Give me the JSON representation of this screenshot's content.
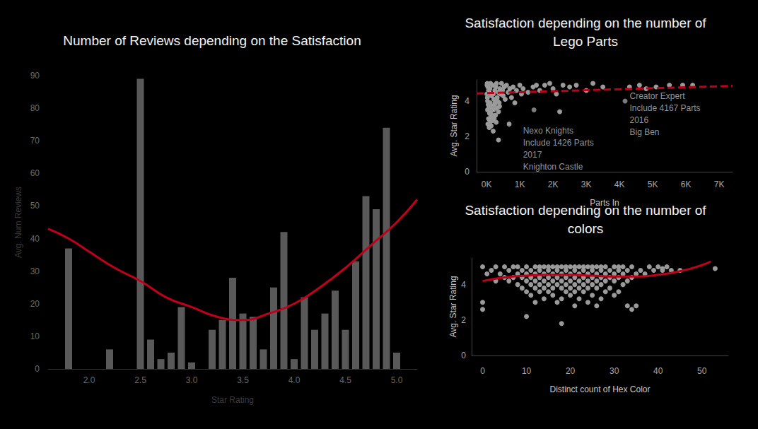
{
  "chart_data": [
    {
      "type": "bar",
      "title": "Number of Reviews depending on the Satisfaction",
      "x_label": "Star Rating",
      "y_label": "Avg. Num Reviews",
      "xlim": [
        1.6,
        5.2
      ],
      "xticks": [
        {
          "value": 2,
          "label": "2.0"
        },
        2.5,
        {
          "value": 3,
          "label": "3.0"
        },
        3.5,
        {
          "value": 4,
          "label": "4.0"
        },
        4.5,
        {
          "value": 5,
          "label": "5.0"
        }
      ],
      "ylim": [
        0,
        90
      ],
      "yticks": [
        0,
        10,
        20,
        30,
        40,
        50,
        60,
        70,
        80,
        90
      ],
      "grid": false,
      "series": [
        {
          "type": "bar",
          "color": "#595959",
          "x": [
            1.8,
            2.2,
            2.5,
            2.6,
            2.7,
            2.8,
            2.9,
            3.0,
            3.2,
            3.3,
            3.4,
            3.5,
            3.6,
            3.7,
            3.8,
            3.9,
            4.0,
            4.1,
            4.2,
            4.3,
            4.4,
            4.5,
            4.6,
            4.7,
            4.8,
            4.9,
            5.0
          ],
          "values": [
            37,
            6,
            89,
            9,
            3,
            5,
            19,
            2,
            12,
            15,
            28,
            17,
            16,
            6,
            25,
            42,
            3,
            22,
            12,
            17,
            24,
            12,
            33,
            53,
            49,
            74,
            5
          ]
        },
        {
          "type": "line",
          "color": "#c0001a",
          "line_style": "solid",
          "x": [
            1.6,
            1.8,
            2.0,
            2.25,
            2.5,
            2.75,
            3.0,
            3.25,
            3.5,
            3.75,
            4.0,
            4.25,
            4.5,
            4.75,
            5.0,
            5.2
          ],
          "values": [
            43,
            40,
            36,
            31,
            27,
            22,
            19,
            16,
            15,
            17,
            20,
            25,
            31,
            38,
            45,
            52
          ]
        }
      ]
    },
    {
      "type": "scatter",
      "title": "Satisfaction depending on the number of\nLego Parts",
      "x_label": "Parts In",
      "y_label": "Avg. Star Rating",
      "xlim": [
        -300,
        7400
      ],
      "xticks": [
        {
          "value": 0,
          "label": "0K"
        },
        {
          "value": 1000,
          "label": "1K"
        },
        {
          "value": 2000,
          "label": "2K"
        },
        {
          "value": 3000,
          "label": "3K"
        },
        {
          "value": 4000,
          "label": "4K"
        },
        {
          "value": 5000,
          "label": "5K"
        },
        {
          "value": 6000,
          "label": "6K"
        },
        {
          "value": 7000,
          "label": "7K"
        }
      ],
      "ylim": [
        0,
        5.2
      ],
      "yticks": [
        0,
        2,
        4
      ],
      "grid": false,
      "series": [
        {
          "type": "scatter",
          "color": "#9a9a9a",
          "marker": "circle",
          "x": [
            20,
            40,
            60,
            80,
            100,
            120,
            150,
            180,
            200,
            220,
            250,
            280,
            300,
            320,
            350,
            380,
            400,
            420,
            450,
            480,
            500,
            530,
            560,
            600,
            650,
            700,
            30,
            50,
            70,
            90,
            110,
            130,
            160,
            190,
            210,
            240,
            270,
            300,
            330,
            360,
            390,
            40,
            60,
            80,
            100,
            120,
            140,
            170,
            200,
            230,
            260,
            290,
            30,
            10,
            15,
            25,
            360,
            680,
            750,
            800,
            850,
            900,
            1000,
            1050,
            1100,
            1250,
            1400,
            1500,
            1600,
            1750,
            1900,
            2000,
            2100,
            2200,
            2300,
            2500,
            2700,
            3000,
            3200,
            3500,
            4300,
            4600,
            4800,
            5100,
            5500,
            5900,
            6200
          ],
          "values": [
            5,
            4.8,
            4.6,
            4.5,
            4.7,
            5,
            4.3,
            4.9,
            4.4,
            4.1,
            4.6,
            4.8,
            5,
            4.2,
            4.5,
            3.9,
            4.7,
            4.4,
            5,
            4.6,
            4.3,
            4.8,
            4.1,
            4.9,
            4.5,
            4.7,
            4,
            3.8,
            3.6,
            3.3,
            3.9,
            3.1,
            3.7,
            2.9,
            3.5,
            3.8,
            3.2,
            3.6,
            4,
            3.4,
            3.7,
            2.7,
            3,
            2.5,
            2.8,
            3.4,
            2.6,
            3.2,
            2.3,
            3,
            3.9,
            2.8,
            3.5,
            4.4,
            4.9,
            4.2,
            1.8,
            2.7,
            4.2,
            4.8,
            3.9,
            4.6,
            4.9,
            4.4,
            4.7,
            4.5,
            4.8,
            4.9,
            4.6,
            4.9,
            5,
            4.7,
            4.4,
            3.4,
            4.9,
            4.8,
            4.9,
            4.6,
            5,
            4.8,
            4.8,
            4.9,
            4.7,
            4.8,
            4.9,
            4.9,
            4.9
          ]
        },
        {
          "type": "line",
          "color": "#c0001a",
          "line_style": "dashed",
          "x": [
            -300,
            7400
          ],
          "values": [
            4.43,
            4.86
          ]
        }
      ],
      "annotations": [
        {
          "text": "Nexo Knights\nInclude 1426 Parts\n2017\nKnighton Castle",
          "x": 1426,
          "y": 3.5
        },
        {
          "text": "Creator Expert\nInclude 4167 Parts\n2016\nBig Ben",
          "x": 4167,
          "y": 4.0
        }
      ]
    },
    {
      "type": "scatter",
      "title": "Satisfaction depending on the number of\ncolors",
      "x_label": "Distinct count of Hex Color",
      "y_label": "Avg. Star Rating",
      "xlim": [
        -2.5,
        56
      ],
      "xticks": [
        0,
        10,
        20,
        30,
        40,
        50
      ],
      "ylim": [
        0,
        5.5
      ],
      "yticks": [
        0,
        2,
        4
      ],
      "grid": false,
      "series": [
        {
          "type": "scatter",
          "color": "#9a9a9a",
          "marker": "circle",
          "x": [
            0,
            3,
            5,
            7,
            8,
            10,
            12,
            13,
            14,
            15,
            16,
            17,
            18,
            19,
            20,
            21,
            22,
            23,
            24,
            25,
            26,
            27,
            28,
            30,
            31,
            32,
            34,
            38,
            40,
            42,
            2,
            6,
            9,
            11,
            13,
            15,
            17,
            19,
            21,
            23,
            25,
            27,
            29,
            31,
            33,
            36,
            39,
            41,
            43,
            1,
            4,
            8,
            10,
            12,
            14,
            16,
            18,
            20,
            22,
            24,
            26,
            28,
            30,
            32,
            35,
            37,
            5,
            7,
            9,
            11,
            13,
            15,
            17,
            19,
            21,
            23,
            25,
            27,
            29,
            31,
            34,
            3,
            6,
            10,
            12,
            14,
            16,
            18,
            20,
            22,
            24,
            26,
            28,
            30,
            33,
            8,
            11,
            13,
            15,
            17,
            19,
            21,
            23,
            25,
            27,
            32,
            9,
            12,
            14,
            16,
            18,
            20,
            22,
            24,
            26,
            29,
            10,
            13,
            15,
            19,
            21,
            23,
            28,
            31,
            11,
            16,
            20,
            25,
            30,
            14,
            18,
            22,
            27,
            0,
            12,
            17,
            24,
            21,
            26,
            33,
            35,
            0,
            34,
            10,
            18,
            45,
            41,
            53
          ],
          "values": [
            5,
            5,
            5,
            5,
            5,
            5,
            5,
            5,
            5,
            5,
            5,
            5,
            5,
            5,
            5,
            5,
            5,
            5,
            5,
            5,
            5,
            5,
            5,
            5,
            5,
            5,
            5,
            5,
            5,
            5,
            4.8,
            4.8,
            4.8,
            4.8,
            4.8,
            4.8,
            4.8,
            4.8,
            4.8,
            4.8,
            4.8,
            4.8,
            4.8,
            4.8,
            4.8,
            4.8,
            4.8,
            4.8,
            4.8,
            4.6,
            4.6,
            4.6,
            4.6,
            4.6,
            4.6,
            4.6,
            4.6,
            4.6,
            4.6,
            4.6,
            4.6,
            4.6,
            4.6,
            4.6,
            4.6,
            4.6,
            4.4,
            4.4,
            4.4,
            4.4,
            4.4,
            4.4,
            4.4,
            4.4,
            4.4,
            4.4,
            4.4,
            4.4,
            4.4,
            4.4,
            4.4,
            4.2,
            4.2,
            4.2,
            4.2,
            4.2,
            4.2,
            4.2,
            4.2,
            4.2,
            4.2,
            4.2,
            4.2,
            4.2,
            4.2,
            4,
            4,
            4,
            4,
            4,
            4,
            4,
            4,
            4,
            4,
            4,
            3.8,
            3.8,
            3.8,
            3.8,
            3.8,
            3.8,
            3.8,
            3.8,
            3.8,
            3.8,
            3.6,
            3.6,
            3.6,
            3.6,
            3.6,
            3.6,
            3.6,
            3.6,
            3.4,
            3.4,
            3.4,
            3.4,
            3.4,
            3.2,
            3.2,
            3.2,
            3.2,
            3,
            3,
            3,
            3,
            2.8,
            2.8,
            2.8,
            2.8,
            2.6,
            2.6,
            2.2,
            1.8,
            4.8,
            4.9,
            4.9
          ]
        },
        {
          "type": "line",
          "color": "#c0001a",
          "line_style": "solid",
          "x": [
            0,
            5,
            10,
            15,
            20,
            25,
            30,
            35,
            40,
            45,
            50,
            52
          ],
          "values": [
            4.2,
            4.4,
            4.5,
            4.55,
            4.55,
            4.5,
            4.45,
            4.45,
            4.55,
            4.75,
            5.1,
            5.3
          ]
        }
      ]
    }
  ]
}
